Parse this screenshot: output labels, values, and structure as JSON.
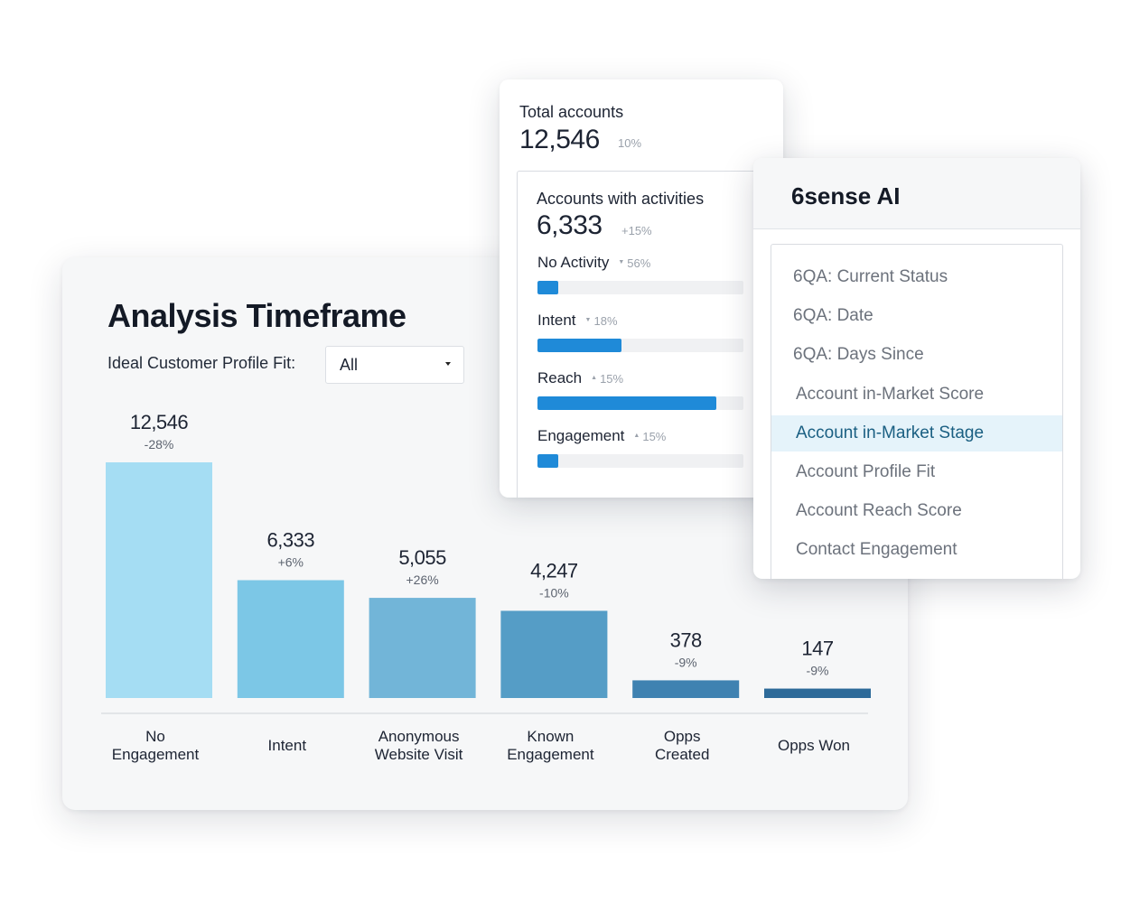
{
  "analysis": {
    "title": "Analysis Timeframe",
    "filter_label": "Ideal Customer Profile Fit:",
    "filter_value": "All"
  },
  "chart_data": {
    "type": "bar",
    "categories": [
      [
        "No",
        "Engagement"
      ],
      [
        "Intent"
      ],
      [
        "Anonymous",
        "Website Visit"
      ],
      [
        "Known",
        "Engagement"
      ],
      [
        "Opps",
        "Created"
      ],
      [
        "Opps Won"
      ]
    ],
    "values": [
      12546,
      6333,
      5055,
      4247,
      378,
      147
    ],
    "value_labels": [
      "12,546",
      "6,333",
      "5,055",
      "4,247",
      "378",
      "147"
    ],
    "deltas": [
      "-28%",
      "+6%",
      "+26%",
      "-10%",
      "-9%",
      "-9%"
    ],
    "bar_levels": [
      1.0,
      0.5,
      0.425,
      0.37,
      0.075,
      0.04
    ],
    "colors": [
      "#a5ddf3",
      "#7cc7e6",
      "#72b5d8",
      "#559dc6",
      "#3f82b1",
      "#2d6a99"
    ],
    "axis_color": "#cfd3d8"
  },
  "accounts": {
    "total_label": "Total accounts",
    "total_value": "12,546",
    "total_delta": "10%",
    "activities_label": "Accounts with activities",
    "activities_value": "6,333",
    "activities_delta": "+15%",
    "bar_color": "#1f8ad8",
    "rows": [
      {
        "name": "No Activity",
        "pct": "56%",
        "arrow": "▼",
        "fill": 0.1
      },
      {
        "name": "Intent",
        "pct": "18%",
        "arrow": "▼",
        "fill": 0.41
      },
      {
        "name": "Reach",
        "pct": "15%",
        "arrow": "▲",
        "fill": 0.87
      },
      {
        "name": "Engagement",
        "pct": "15%",
        "arrow": "▲",
        "fill": 0.1
      }
    ]
  },
  "ai": {
    "title": "6sense AI",
    "items": [
      "6QA: Current Status",
      "6QA: Date",
      "6QA: Days Since",
      "Account in-Market Score",
      "Account in-Market Stage",
      "Account Profile Fit",
      "Account Reach Score",
      "Contact Engagement"
    ],
    "selected_index": 4
  }
}
